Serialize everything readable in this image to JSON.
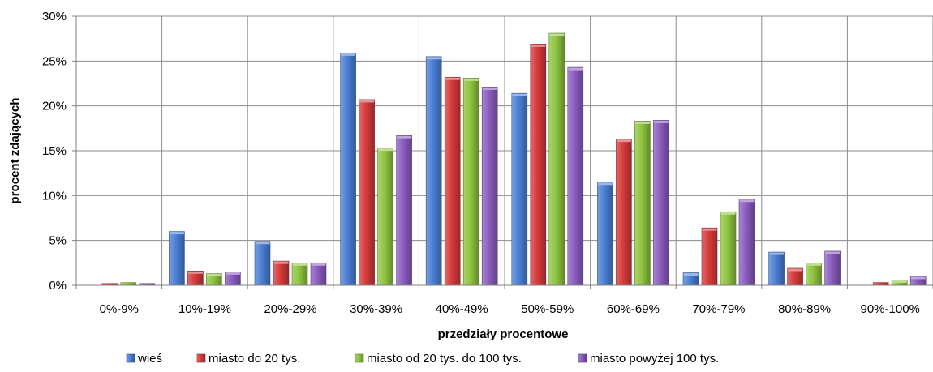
{
  "chart_data": {
    "type": "bar",
    "categories": [
      "0%-9%",
      "10%-19%",
      "20%-29%",
      "30%-39%",
      "40%-49%",
      "50%-59%",
      "60%-69%",
      "70%-79%",
      "80%-89%",
      "90%-100%"
    ],
    "series": [
      {
        "name": "wieś",
        "color": "#4a7fd6",
        "values": [
          0.0,
          6.0,
          4.9,
          25.9,
          25.5,
          21.4,
          11.5,
          1.4,
          3.7,
          0.0
        ]
      },
      {
        "name": "miasto do 20 tys.",
        "color": "#d63a3a",
        "values": [
          0.2,
          1.6,
          2.7,
          20.7,
          23.2,
          26.9,
          16.3,
          6.4,
          1.9,
          0.3
        ]
      },
      {
        "name": "miasto od 20 tys. do 100 tys.",
        "color": "#8fc43f",
        "values": [
          0.3,
          1.3,
          2.5,
          15.3,
          23.1,
          28.1,
          18.3,
          8.2,
          2.5,
          0.6
        ]
      },
      {
        "name": "miasto powyżej 100 tys.",
        "color": "#8a5cc0",
        "values": [
          0.2,
          1.5,
          2.5,
          16.7,
          22.1,
          24.3,
          18.4,
          9.6,
          3.8,
          1.0
        ]
      }
    ],
    "xlabel": "przedziały procentowe",
    "ylabel": "procent  zdających",
    "ylim": [
      0,
      30
    ],
    "yticks": [
      "0%",
      "5%",
      "10%",
      "15%",
      "20%",
      "25%",
      "30%"
    ],
    "grid": true,
    "legend_position": "bottom"
  }
}
